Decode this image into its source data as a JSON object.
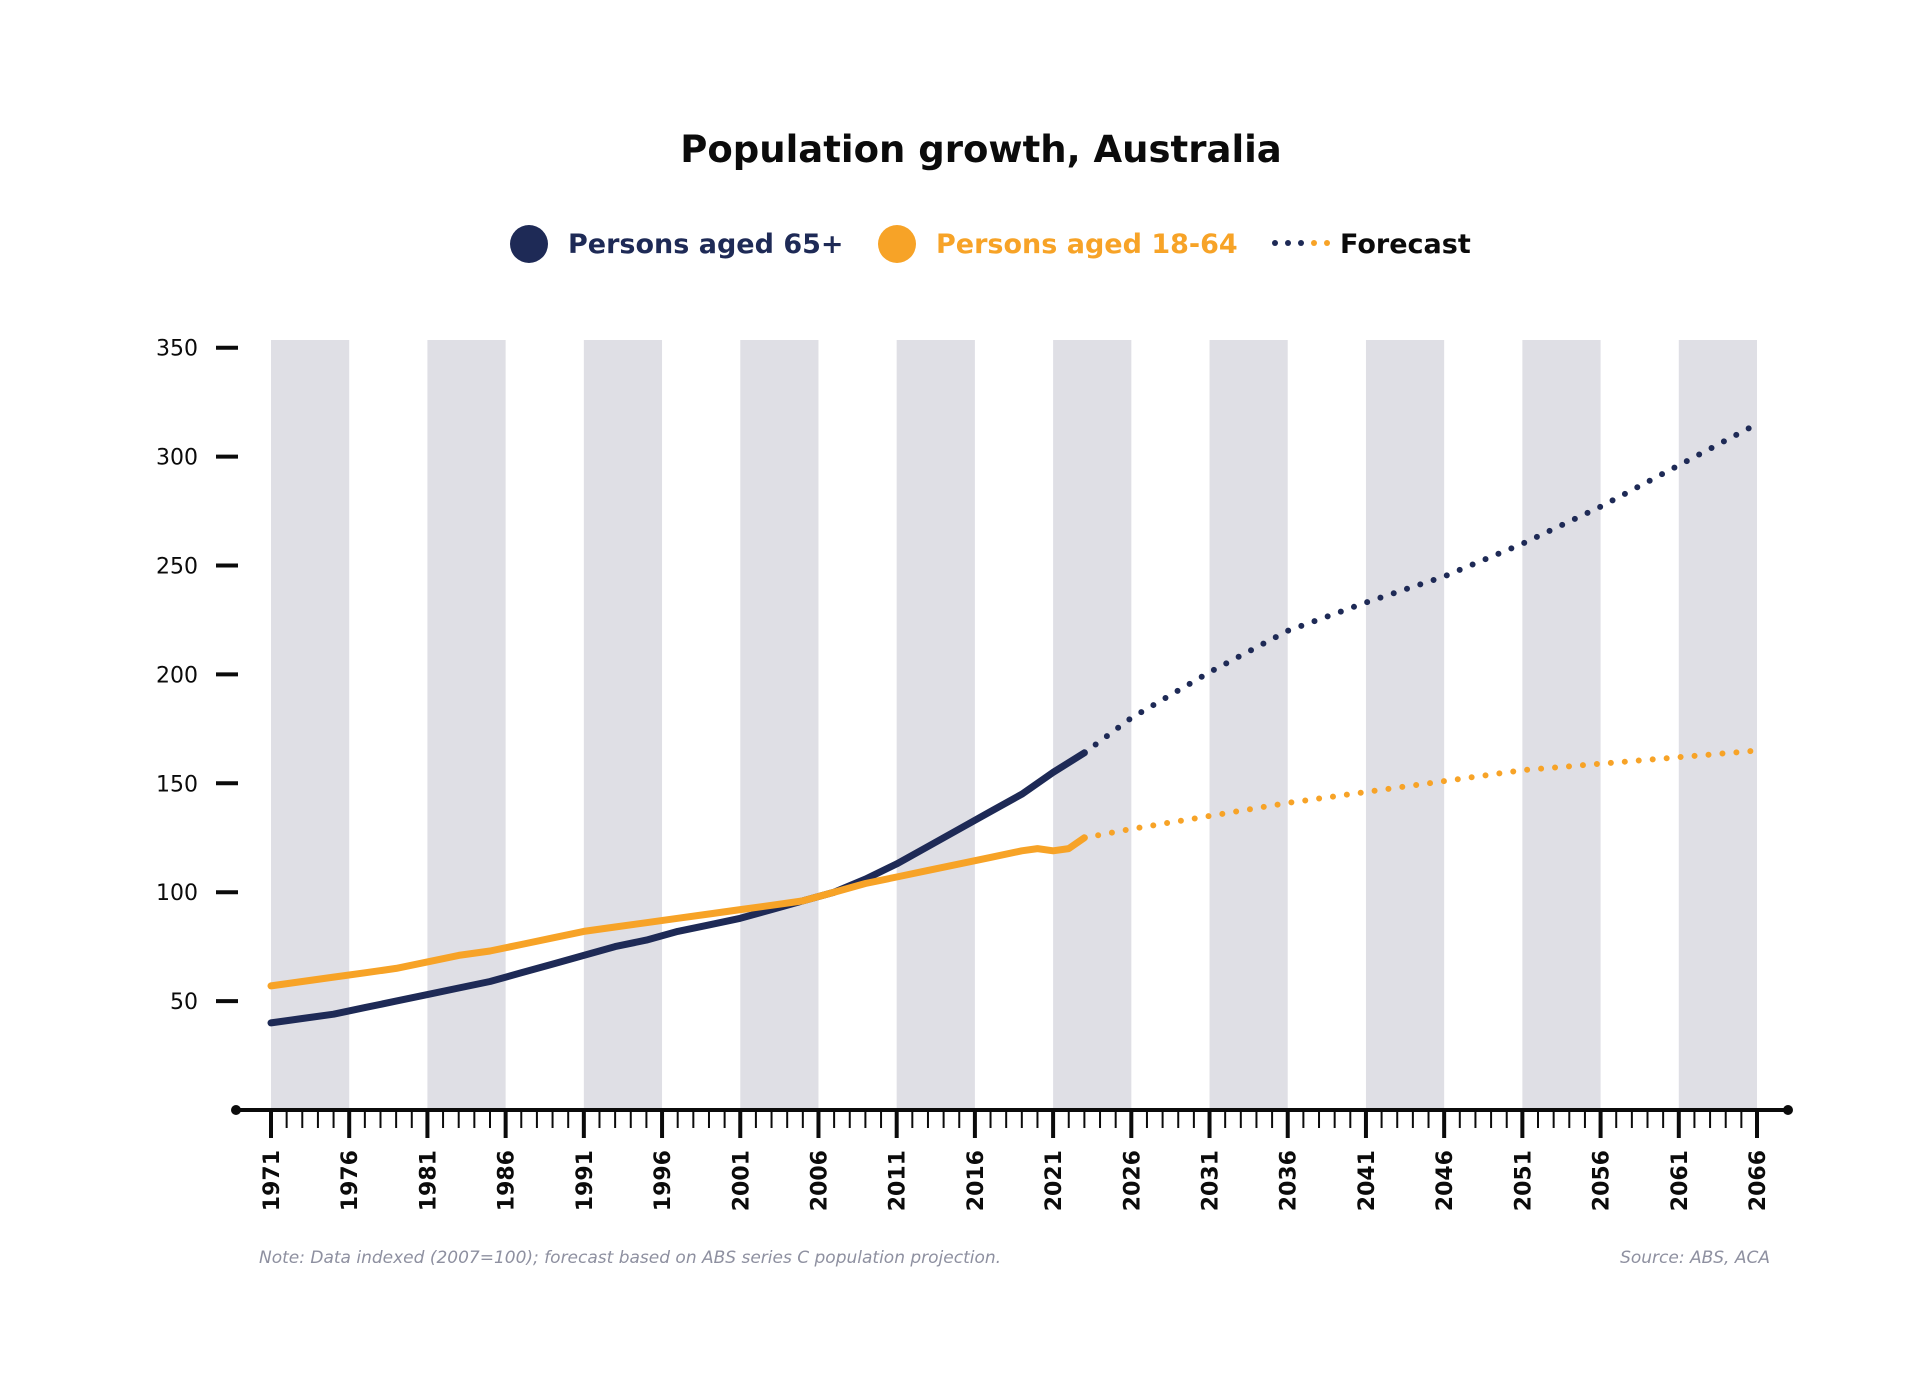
{
  "colors": {
    "series_65": "#1e2a56",
    "series_18_64": "#f7a327",
    "band": "#dfdfe5",
    "axis": "#0b0b0b",
    "note": "#8e90a0"
  },
  "legend": {
    "label_65": "Persons aged 65+",
    "label_18_64": "Persons aged 18-64",
    "label_forecast": "Forecast"
  },
  "chart_data": {
    "type": "line",
    "title": "Population growth, Australia",
    "xlabel": "",
    "ylabel": "",
    "xlim": [
      1971,
      2066
    ],
    "ylim": [
      0,
      350
    ],
    "y_ticks": [
      50,
      100,
      150,
      200,
      250,
      300,
      350
    ],
    "x_ticks": [
      1971,
      1976,
      1981,
      1986,
      1991,
      1996,
      2001,
      2006,
      2011,
      2016,
      2021,
      2026,
      2031,
      2036,
      2041,
      2046,
      2051,
      2056,
      2061,
      2066
    ],
    "shaded_bands": [
      [
        1971,
        1976
      ],
      [
        1981,
        1986
      ],
      [
        1991,
        1996
      ],
      [
        2001,
        2006
      ],
      [
        2011,
        2016
      ],
      [
        2021,
        2026
      ],
      [
        2031,
        2036
      ],
      [
        2041,
        2046
      ],
      [
        2051,
        2056
      ],
      [
        2061,
        2066
      ]
    ],
    "legend_position": "top-center",
    "series": [
      {
        "name": "Persons aged 65+",
        "color": "#1e2a56",
        "actual": {
          "x": [
            1971,
            1973,
            1975,
            1977,
            1979,
            1981,
            1983,
            1985,
            1987,
            1989,
            1991,
            1993,
            1995,
            1997,
            1999,
            2001,
            2003,
            2005,
            2007,
            2009,
            2011,
            2013,
            2015,
            2017,
            2019,
            2021,
            2023
          ],
          "y": [
            40,
            42,
            44,
            47,
            50,
            53,
            56,
            59,
            63,
            67,
            71,
            75,
            78,
            82,
            85,
            88,
            92,
            96,
            100,
            106,
            113,
            121,
            129,
            137,
            145,
            155,
            164
          ]
        },
        "forecast": {
          "x": [
            2023,
            2026,
            2031,
            2036,
            2041,
            2046,
            2051,
            2056,
            2061,
            2066
          ],
          "y": [
            164,
            180,
            201,
            220,
            233,
            245,
            260,
            277,
            296,
            315
          ]
        }
      },
      {
        "name": "Persons aged 18-64",
        "color": "#f7a327",
        "actual": {
          "x": [
            1971,
            1973,
            1975,
            1977,
            1979,
            1981,
            1983,
            1985,
            1987,
            1989,
            1991,
            1993,
            1995,
            1997,
            1999,
            2001,
            2003,
            2005,
            2007,
            2009,
            2011,
            2013,
            2015,
            2017,
            2019,
            2020,
            2021,
            2022,
            2023
          ],
          "y": [
            57,
            59,
            61,
            63,
            65,
            68,
            71,
            73,
            76,
            79,
            82,
            84,
            86,
            88,
            90,
            92,
            94,
            96,
            100,
            104,
            107,
            110,
            113,
            116,
            119,
            120,
            119,
            120,
            125
          ]
        },
        "forecast": {
          "x": [
            2023,
            2026,
            2031,
            2036,
            2041,
            2046,
            2051,
            2056,
            2061,
            2066
          ],
          "y": [
            125,
            129,
            135,
            141,
            146,
            151,
            156,
            159,
            162,
            165
          ]
        }
      }
    ]
  },
  "footer": {
    "note": "Note: Data indexed (2007=100); forecast based on ABS series C population projection.",
    "source": "Source: ABS, ACA"
  }
}
